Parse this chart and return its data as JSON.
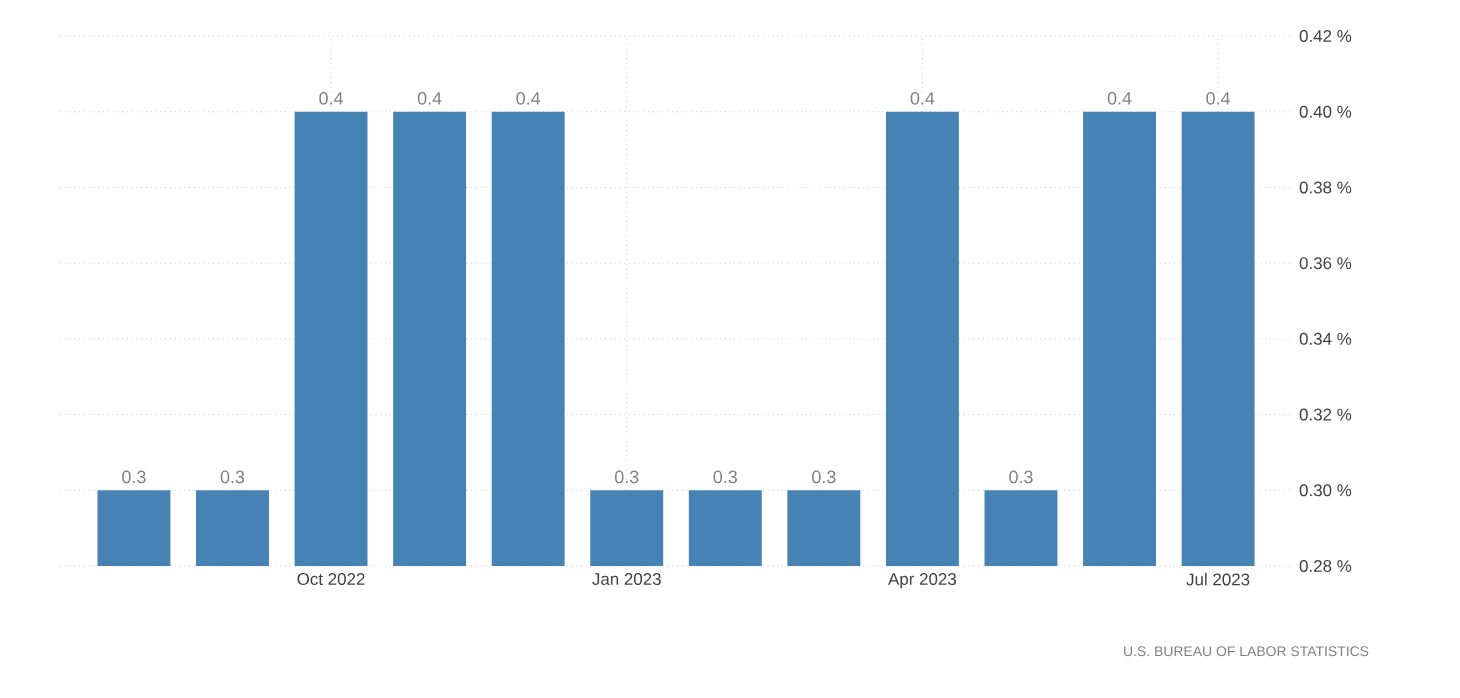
{
  "chart_data": {
    "type": "bar",
    "categories": [
      null,
      null,
      "Oct 2022",
      null,
      null,
      "Jan 2023",
      null,
      null,
      "Apr 2023",
      null,
      null,
      "Jul 2023"
    ],
    "values": [
      0.3,
      0.3,
      0.4,
      0.4,
      0.4,
      0.3,
      0.3,
      0.3,
      0.4,
      0.3,
      0.4,
      0.4
    ],
    "color": "#4682b4",
    "data_labels": true,
    "ylim": [
      0.28,
      0.42
    ],
    "yticks": [
      {
        "value": 0.28,
        "label": "0.28 %"
      },
      {
        "value": 0.3,
        "label": "0.30 %"
      },
      {
        "value": 0.32,
        "label": "0.32 %"
      },
      {
        "value": 0.34,
        "label": "0.34 %"
      },
      {
        "value": 0.36,
        "label": "0.36 %"
      },
      {
        "value": 0.38,
        "label": "0.38 %"
      },
      {
        "value": 0.4,
        "label": "0.40 %"
      },
      {
        "value": 0.42,
        "label": "0.42 %"
      }
    ],
    "grid": true,
    "annotations": [
      "U.S. BUREAU OF LABOR STATISTICS"
    ]
  }
}
